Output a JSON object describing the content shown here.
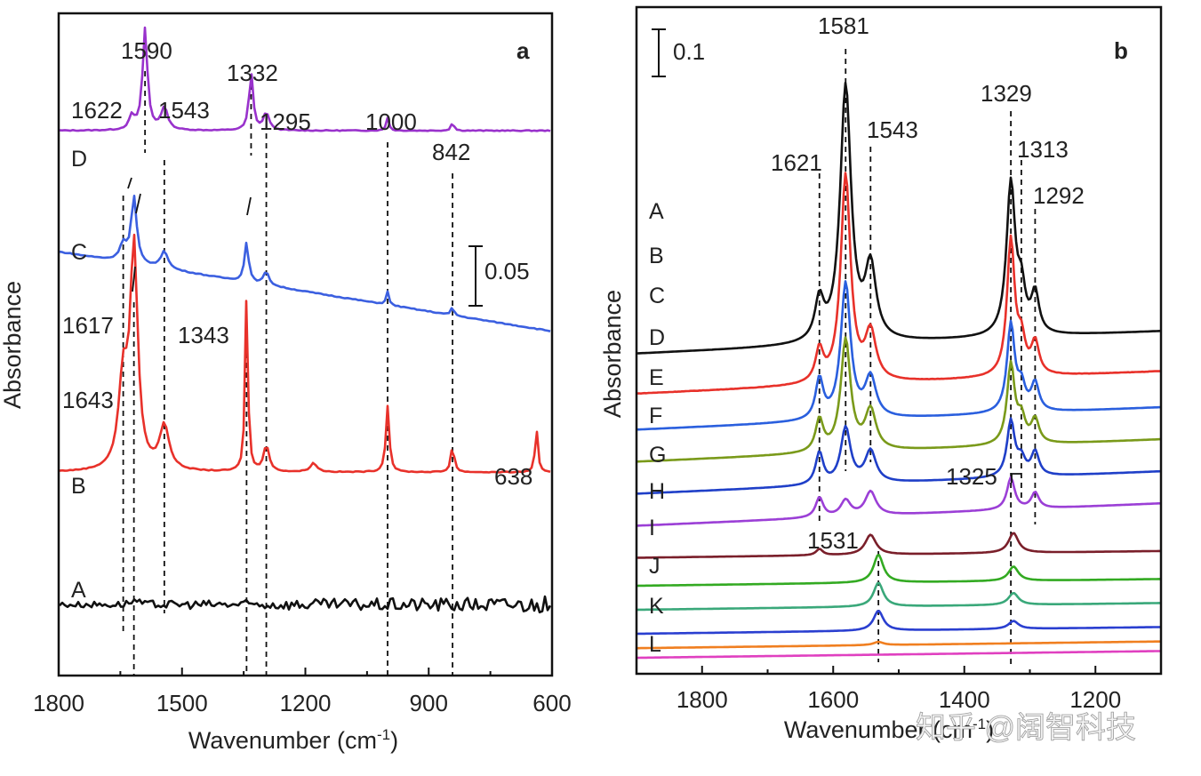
{
  "chart_data": [
    {
      "type": "line",
      "panel_label": "a",
      "xlabel": "Wavenumber (cm",
      "xlabel_sup": "-1",
      "xlabel_end": ")",
      "ylabel": "Absorbance",
      "xlim": [
        1800,
        600
      ],
      "xticks": [
        1800,
        1500,
        1200,
        900,
        600
      ],
      "x_tick_labels": [
        "1800",
        "1500",
        "1200",
        "900",
        "600"
      ],
      "scale_bar_label": "0.05",
      "series": [
        {
          "name": "D",
          "color": "#9932cc",
          "offset": 0.225,
          "peaks": [
            [
              1622,
              0.006,
              8
            ],
            [
              1590,
              0.046,
              7
            ],
            [
              1543,
              0.01,
              10
            ],
            [
              1332,
              0.026,
              6
            ],
            [
              1295,
              0.008,
              8
            ],
            [
              1000,
              0.006,
              4
            ],
            [
              842,
              0.004,
              4
            ]
          ]
        },
        {
          "name": "C",
          "color": "#3b5fe0",
          "offset": 0.17,
          "peaks": [
            [
              1643,
              0.008,
              10
            ],
            [
              1617,
              0.03,
              8
            ],
            [
              1543,
              0.008,
              10
            ],
            [
              1343,
              0.018,
              6
            ],
            [
              1295,
              0.006,
              8
            ],
            [
              1000,
              0.006,
              4
            ],
            [
              842,
              0.004,
              4
            ]
          ]
        },
        {
          "name": "B",
          "color": "#e8312a",
          "offset": 0.07,
          "peaks": [
            [
              1643,
              0.04,
              13
            ],
            [
              1617,
              0.1,
              11
            ],
            [
              1543,
              0.02,
              14
            ],
            [
              1343,
              0.08,
              4
            ],
            [
              1295,
              0.012,
              8
            ],
            [
              1180,
              0.004,
              10
            ],
            [
              1000,
              0.03,
              5
            ],
            [
              842,
              0.012,
              5
            ],
            [
              638,
              0.02,
              4
            ]
          ]
        },
        {
          "name": "A",
          "color": "#111111",
          "offset": 0.01,
          "peaks": [
            [
              1617,
              0.002,
              10
            ]
          ]
        }
      ],
      "annotations": [
        "1590",
        "1622",
        "1543",
        "1332",
        "1295",
        "1000",
        "842",
        "1617",
        "1643",
        "1343",
        "638"
      ]
    },
    {
      "type": "line",
      "panel_label": "b",
      "xlabel": "Wavenumber (cm",
      "xlabel_sup": "-1",
      "xlabel_end": ")",
      "ylabel": "Absorbance",
      "xlim": [
        1900,
        1100
      ],
      "xticks": [
        1800,
        1600,
        1400,
        1200
      ],
      "x_tick_labels": [
        "1800",
        "1600",
        "1400",
        "1200"
      ],
      "scale_bar_label": "0.1",
      "series": [
        {
          "name": "A",
          "color": "#111111",
          "offset": 0.38,
          "peaks": [
            [
              1621,
              0.05,
              8
            ],
            [
              1581,
              0.32,
              10
            ],
            [
              1543,
              0.09,
              10
            ],
            [
              1329,
              0.19,
              8
            ],
            [
              1313,
              0.05,
              7
            ],
            [
              1292,
              0.05,
              7
            ]
          ]
        },
        {
          "name": "B",
          "color": "#e8312a",
          "offset": 0.33,
          "peaks": [
            [
              1621,
              0.04,
              7
            ],
            [
              1581,
              0.26,
              9
            ],
            [
              1543,
              0.06,
              10
            ],
            [
              1329,
              0.17,
              7
            ],
            [
              1313,
              0.04,
              7
            ],
            [
              1292,
              0.04,
              7
            ]
          ]
        },
        {
          "name": "C",
          "color": "#2a5fde",
          "offset": 0.285,
          "peaks": [
            [
              1621,
              0.05,
              7
            ],
            [
              1581,
              0.17,
              9
            ],
            [
              1543,
              0.05,
              10
            ],
            [
              1329,
              0.11,
              7
            ],
            [
              1313,
              0.03,
              7
            ],
            [
              1292,
              0.035,
              7
            ]
          ]
        },
        {
          "name": "D",
          "color": "#7a9a1a",
          "offset": 0.245,
          "peaks": [
            [
              1621,
              0.04,
              7
            ],
            [
              1581,
              0.14,
              9
            ],
            [
              1543,
              0.05,
              10
            ],
            [
              1329,
              0.1,
              7
            ],
            [
              1313,
              0.03,
              7
            ],
            [
              1292,
              0.03,
              7
            ]
          ]
        },
        {
          "name": "E",
          "color": "#1f3fc8",
          "offset": 0.205,
          "peaks": [
            [
              1621,
              0.04,
              7
            ],
            [
              1581,
              0.07,
              9
            ],
            [
              1543,
              0.04,
              10
            ],
            [
              1329,
              0.07,
              7
            ],
            [
              1313,
              0.02,
              7
            ],
            [
              1292,
              0.03,
              7
            ]
          ]
        },
        {
          "name": "F",
          "color": "#9b3fd6",
          "offset": 0.165,
          "peaks": [
            [
              1621,
              0.025,
              7
            ],
            [
              1581,
              0.02,
              9
            ],
            [
              1543,
              0.03,
              10
            ],
            [
              1329,
              0.04,
              7
            ],
            [
              1292,
              0.02,
              7
            ]
          ]
        },
        {
          "name": "G",
          "color": "#7a1f2a",
          "offset": 0.125,
          "peaks": [
            [
              1621,
              0.008,
              6
            ],
            [
              1543,
              0.025,
              10
            ],
            [
              1325,
              0.025,
              9
            ]
          ]
        },
        {
          "name": "H",
          "color": "#33aa22",
          "offset": 0.09,
          "peaks": [
            [
              1531,
              0.035,
              9
            ],
            [
              1325,
              0.018,
              9
            ]
          ]
        },
        {
          "name": "I",
          "color": "#3aa87a",
          "offset": 0.06,
          "peaks": [
            [
              1531,
              0.03,
              9
            ],
            [
              1325,
              0.015,
              9
            ]
          ]
        },
        {
          "name": "J",
          "color": "#2a3fd0",
          "offset": 0.03,
          "peaks": [
            [
              1531,
              0.025,
              9
            ],
            [
              1325,
              0.01,
              9
            ]
          ]
        },
        {
          "name": "K",
          "color": "#f07f20",
          "offset": 0.012,
          "peaks": [
            [
              1531,
              0.004,
              9
            ]
          ]
        },
        {
          "name": "L",
          "color": "#e040c0",
          "offset": 0.0,
          "peaks": []
        }
      ],
      "annotations": [
        "1581",
        "1621",
        "1543",
        "1329",
        "1313",
        "1292",
        "1325",
        "1531"
      ]
    }
  ],
  "watermark": "知乎 @阔智科技"
}
